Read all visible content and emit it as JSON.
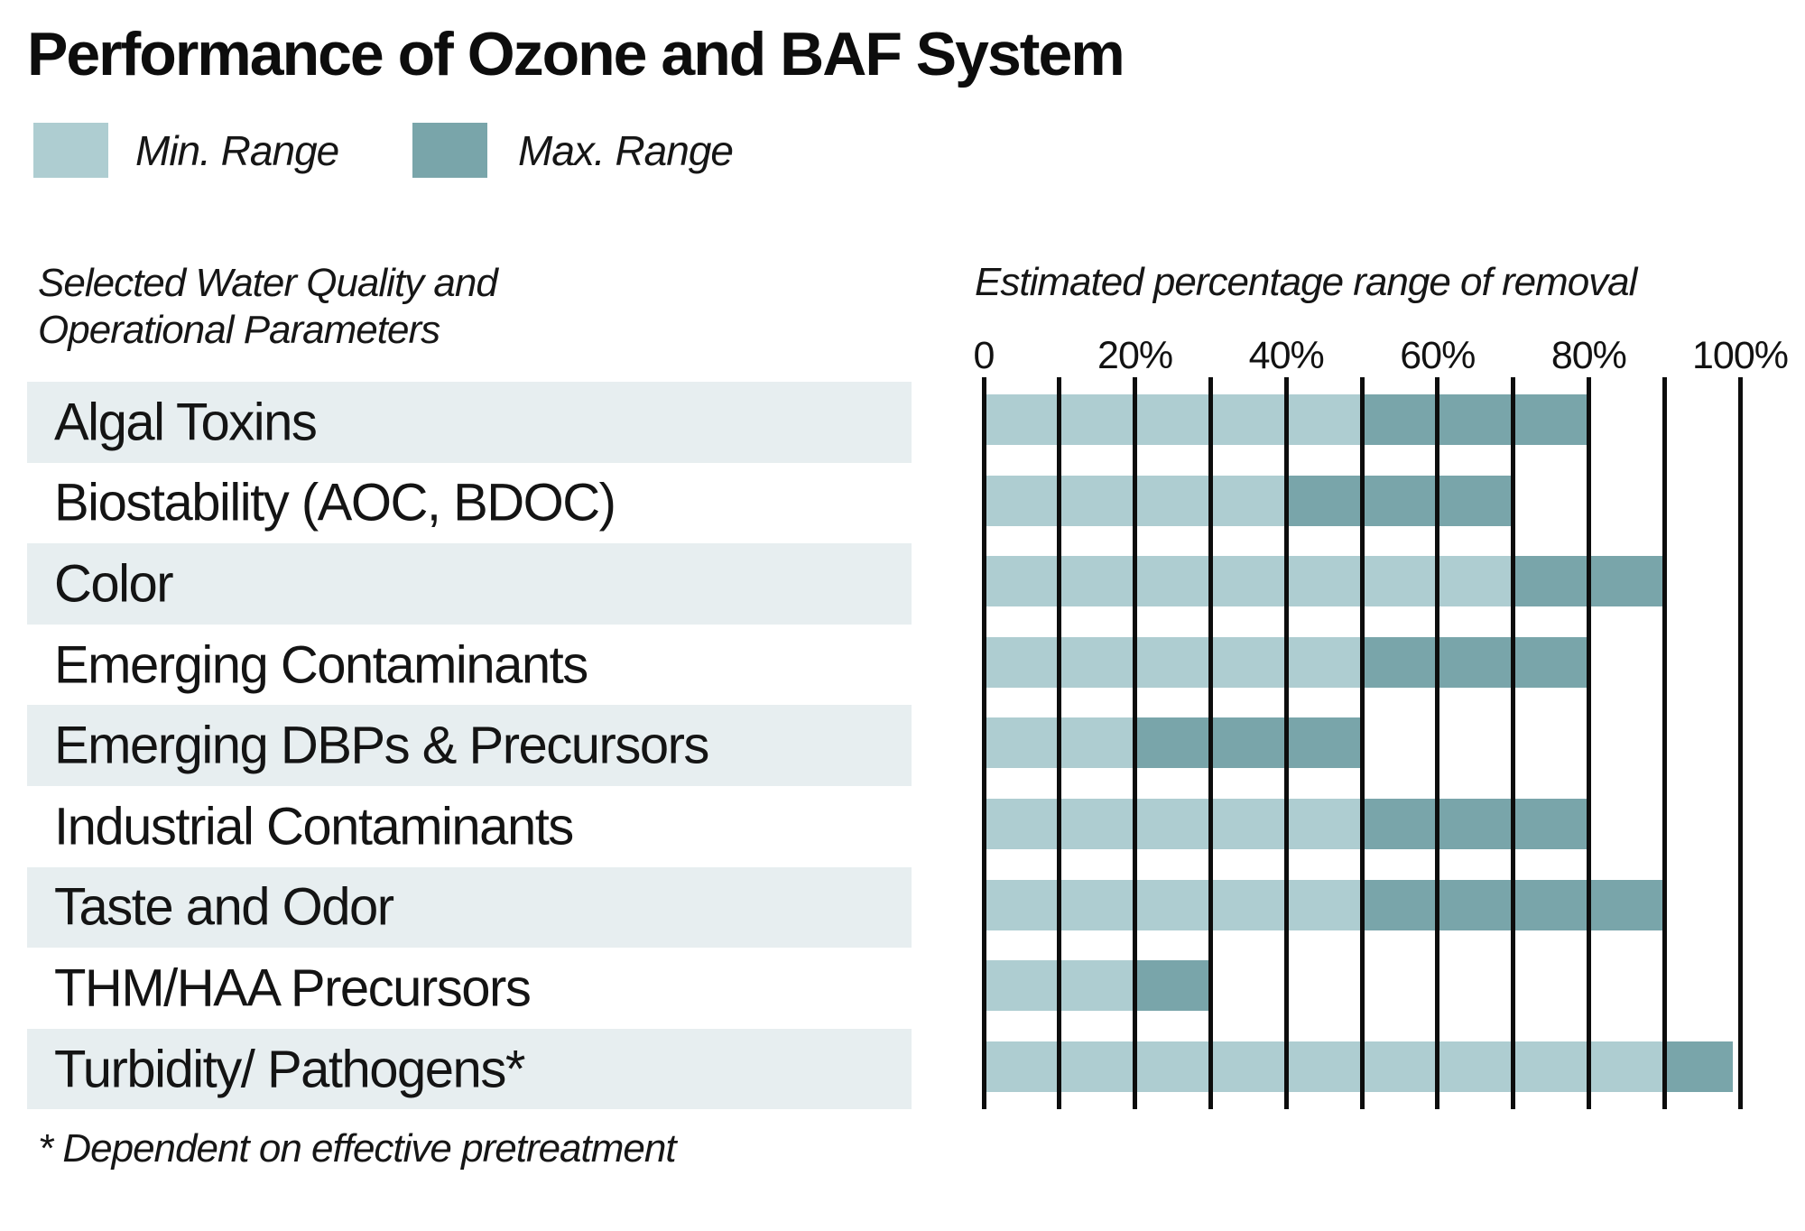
{
  "title": "Performance of Ozone and BAF System",
  "legend": {
    "min_label": "Min. Range",
    "max_label": "Max. Range"
  },
  "left_header_line1": "Selected Water Quality and",
  "left_header_line2": "Operational Parameters",
  "axis_title": "Estimated percentage range of removal",
  "footnote": "* Dependent on effective pretreatment",
  "colors": {
    "min": "#aecdd1",
    "max": "#79a5aa",
    "row_stripe": "#e7eef0",
    "gridline": "#0d0d0d"
  },
  "ticks": [
    {
      "label": "0",
      "pct": 0
    },
    {
      "label": "20%",
      "pct": 20
    },
    {
      "label": "40%",
      "pct": 40
    },
    {
      "label": "60%",
      "pct": 60
    },
    {
      "label": "80%",
      "pct": 80
    },
    {
      "label": "100%",
      "pct": 100
    }
  ],
  "rows": [
    {
      "label": "Algal Toxins",
      "min_end": 50,
      "max_end": 80
    },
    {
      "label": "Biostability (AOC, BDOC)",
      "min_end": 40,
      "max_end": 70
    },
    {
      "label": "Color",
      "min_end": 70,
      "max_end": 90
    },
    {
      "label": "Emerging Contaminants",
      "min_end": 50,
      "max_end": 80
    },
    {
      "label": "Emerging DBPs & Precursors",
      "min_end": 20,
      "max_end": 50
    },
    {
      "label": "Industrial Contaminants",
      "min_end": 50,
      "max_end": 80
    },
    {
      "label": "Taste and Odor",
      "min_end": 50,
      "max_end": 90
    },
    {
      "label": "THM/HAA Precursors",
      "min_end": 20,
      "max_end": 30
    },
    {
      "label": "Turbidity/ Pathogens*",
      "min_end": 90,
      "max_end": 99
    }
  ],
  "chart_data": {
    "type": "bar",
    "subtype": "horizontal-stacked-range",
    "title": "Performance of Ozone and BAF System",
    "xlabel": "Estimated percentage range of removal",
    "ylabel": "Selected Water Quality and Operational Parameters",
    "xlim": [
      0,
      100
    ],
    "x_tick_labels": [
      "0",
      "20%",
      "40%",
      "60%",
      "80%",
      "100%"
    ],
    "gridline_step_pct": 10,
    "grid": "vertical-on",
    "legend_position": "top-left",
    "categories": [
      "Algal Toxins",
      "Biostability (AOC, BDOC)",
      "Color",
      "Emerging Contaminants",
      "Emerging DBPs & Precursors",
      "Industrial Contaminants",
      "Taste and Odor",
      "THM/HAA Precursors",
      "Turbidity/ Pathogens*"
    ],
    "series": [
      {
        "name": "Min. Range",
        "color": "#aecdd1",
        "ranges_pct": [
          [
            0,
            50
          ],
          [
            0,
            40
          ],
          [
            0,
            70
          ],
          [
            0,
            50
          ],
          [
            0,
            20
          ],
          [
            0,
            50
          ],
          [
            0,
            50
          ],
          [
            0,
            20
          ],
          [
            0,
            90
          ]
        ]
      },
      {
        "name": "Max. Range",
        "color": "#79a5aa",
        "ranges_pct": [
          [
            50,
            80
          ],
          [
            40,
            70
          ],
          [
            70,
            90
          ],
          [
            50,
            80
          ],
          [
            20,
            50
          ],
          [
            50,
            80
          ],
          [
            50,
            90
          ],
          [
            20,
            30
          ],
          [
            90,
            99
          ]
        ]
      }
    ],
    "footnote": "* Dependent on effective pretreatment"
  }
}
